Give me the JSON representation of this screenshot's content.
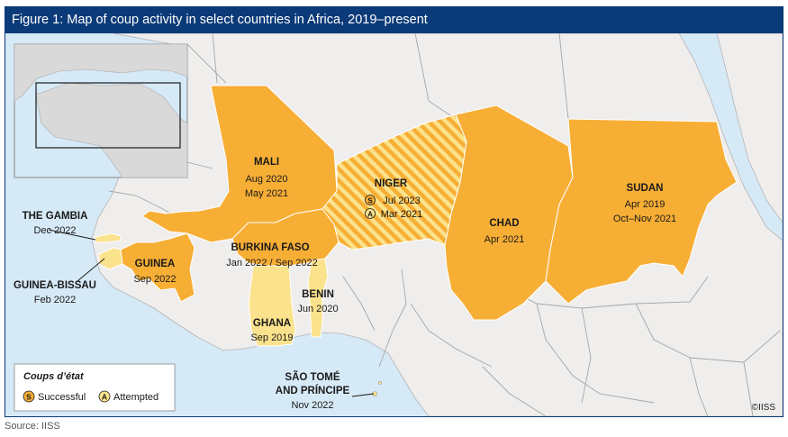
{
  "title": "Figure 1: Map of coup activity in select countries in Africa, 2019–present",
  "source": "Source: IISS",
  "copyright": "©IISS",
  "legend": {
    "title": "Coups d’état",
    "successful": "Successful",
    "attempted": "Attempted",
    "successful_symbol": "S",
    "attempted_symbol": "A"
  },
  "colors": {
    "successful": "#f7ae35",
    "attempted": "#fbe28c",
    "sea": "#d6e9f6",
    "land": "#efeeed",
    "border": "#a6a6a6",
    "frame": "#0b3a78"
  },
  "countries": {
    "mali": {
      "name": "MALI",
      "dates": [
        "Aug 2020",
        "May 2021"
      ],
      "status": "successful"
    },
    "niger": {
      "name": "NIGER",
      "dates": [
        "Jul 2023",
        "Mar 2021"
      ],
      "status": "successful+attempted"
    },
    "chad": {
      "name": "CHAD",
      "dates": [
        "Apr 2021"
      ],
      "status": "successful"
    },
    "sudan": {
      "name": "SUDAN",
      "dates": [
        "Apr 2019",
        "Oct–Nov 2021"
      ],
      "status": "successful"
    },
    "burkina": {
      "name": "BURKINA FASO",
      "dates": [
        "Jan 2022 / Sep 2022"
      ],
      "status": "successful"
    },
    "guinea": {
      "name": "GUINEA",
      "dates": [
        "Sep 2022"
      ],
      "status": "successful"
    },
    "gambia": {
      "name": "THE GAMBIA",
      "dates": [
        "Dec 2022"
      ],
      "status": "attempted"
    },
    "guineabissau": {
      "name": "GUINEA-BISSAU",
      "dates": [
        "Feb 2022"
      ],
      "status": "attempted"
    },
    "benin": {
      "name": "BENIN",
      "dates": [
        "Jun 2020"
      ],
      "status": "attempted"
    },
    "ghana": {
      "name": "GHANA",
      "dates": [
        "Sep 2019"
      ],
      "status": "attempted"
    },
    "saotome": {
      "name": "SÃO TOMÉ",
      "name2": "AND PRÍNCIPE",
      "dates": [
        "Nov 2022"
      ],
      "status": "attempted"
    }
  }
}
